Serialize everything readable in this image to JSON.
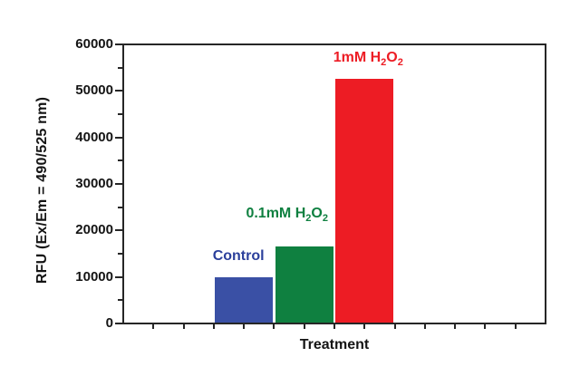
{
  "chart_data": {
    "type": "bar",
    "title": "",
    "xlabel": "Treatment",
    "ylabel": "RFU (Ex/Em = 490/525 nm)",
    "ylim": [
      0,
      60000
    ],
    "y_major_step": 10000,
    "y_minor_step": 5000,
    "x_minor_divisions": 14,
    "grid": false,
    "legend": "none",
    "background_color": "#ffffff",
    "axis_color": "#262626",
    "text_color": "#141414",
    "categories": [
      "Control",
      "0.1mM H2O2",
      "1mM H2O2"
    ],
    "values": [
      9700,
      16300,
      52500
    ],
    "bars": [
      {
        "category": "Control",
        "value": 9700,
        "bar_color": "#3a50a5",
        "label_color": "#2b3f9b",
        "label_runs": [
          {
            "text": "Control",
            "sub": false
          }
        ],
        "slot": 4,
        "label_dx": -6,
        "label_gap": 14
      },
      {
        "category": "0.1mM H2O2",
        "value": 16300,
        "bar_color": "#0f8040",
        "label_color": "#0f8040",
        "label_runs": [
          {
            "text": "0.1mM H",
            "sub": false
          },
          {
            "text": "2",
            "sub": true
          },
          {
            "text": "O",
            "sub": false
          },
          {
            "text": "2",
            "sub": true
          }
        ],
        "slot": 6,
        "label_dx": -19,
        "label_gap": 21
      },
      {
        "category": "1mM H2O2",
        "value": 52500,
        "bar_color": "#ed1c24",
        "label_color": "#ed1c24",
        "label_runs": [
          {
            "text": "1mM H",
            "sub": false
          },
          {
            "text": "2",
            "sub": true
          },
          {
            "text": "O",
            "sub": false
          },
          {
            "text": "2",
            "sub": true
          }
        ],
        "slot": 8,
        "label_dx": 4,
        "label_gap": 8
      }
    ]
  }
}
